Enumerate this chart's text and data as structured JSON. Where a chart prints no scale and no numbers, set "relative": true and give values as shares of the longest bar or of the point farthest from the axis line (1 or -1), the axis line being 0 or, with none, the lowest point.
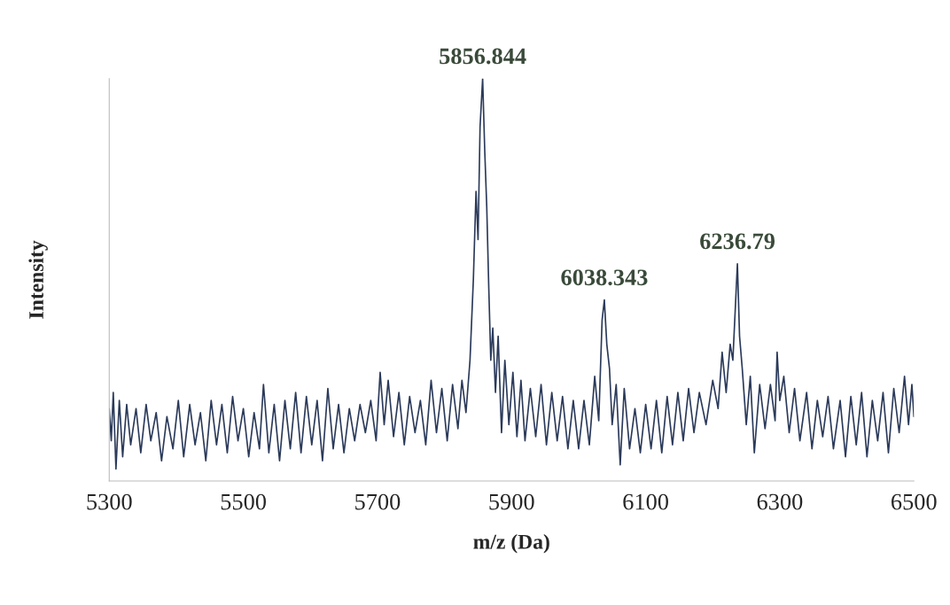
{
  "chart_data": {
    "type": "line",
    "xlabel": "m/z (Da)",
    "ylabel": "Intensity",
    "relative": true,
    "xlim": [
      5300,
      6500
    ],
    "xticks": [
      5300,
      5500,
      5700,
      5900,
      6100,
      6300,
      6500
    ],
    "grid": false,
    "legend": false,
    "marker": "none",
    "line_style": "solid",
    "annotations": [
      {
        "text": "5856.844",
        "x": 5856.844,
        "y": 1.0
      },
      {
        "text": "6038.343",
        "x": 6038.343,
        "y": 0.45
      },
      {
        "text": "6236.79",
        "x": 6236.79,
        "y": 0.54
      }
    ],
    "series": [
      {
        "color": "#2b3a5a",
        "x": [
          5300,
          5303,
          5306,
          5310,
          5315,
          5320,
          5326,
          5332,
          5340,
          5347,
          5355,
          5362,
          5370,
          5378,
          5386,
          5395,
          5403,
          5411,
          5420,
          5428,
          5436,
          5444,
          5452,
          5460,
          5468,
          5476,
          5484,
          5492,
          5500,
          5508,
          5516,
          5524,
          5530,
          5538,
          5546,
          5554,
          5562,
          5570,
          5578,
          5586,
          5594,
          5602,
          5610,
          5618,
          5626,
          5634,
          5642,
          5650,
          5658,
          5666,
          5674,
          5682,
          5690,
          5698,
          5704,
          5710,
          5716,
          5724,
          5732,
          5740,
          5748,
          5756,
          5764,
          5772,
          5780,
          5788,
          5796,
          5804,
          5812,
          5820,
          5826,
          5832,
          5838,
          5843,
          5847,
          5850,
          5853,
          5856.844,
          5860,
          5863,
          5866,
          5869,
          5872,
          5876,
          5880,
          5885,
          5890,
          5896,
          5902,
          5908,
          5914,
          5920,
          5928,
          5936,
          5944,
          5952,
          5960,
          5968,
          5976,
          5984,
          5992,
          6000,
          6008,
          6016,
          6024,
          6030,
          6035,
          6038.343,
          6042,
          6046,
          6050,
          6056,
          6062,
          6068,
          6076,
          6084,
          6092,
          6100,
          6108,
          6116,
          6124,
          6132,
          6140,
          6148,
          6156,
          6164,
          6172,
          6180,
          6190,
          6200,
          6208,
          6214,
          6220,
          6226,
          6230,
          6236.79,
          6240,
          6244,
          6250,
          6256,
          6262,
          6270,
          6278,
          6286,
          6293,
          6296,
          6300,
          6306,
          6314,
          6322,
          6330,
          6340,
          6348,
          6356,
          6364,
          6372,
          6380,
          6390,
          6398,
          6406,
          6414,
          6422,
          6430,
          6438,
          6446,
          6454,
          6462,
          6470,
          6478,
          6486,
          6492,
          6497,
          6500
        ],
        "values": [
          0.18,
          0.1,
          0.22,
          0.03,
          0.2,
          0.06,
          0.19,
          0.09,
          0.18,
          0.07,
          0.19,
          0.1,
          0.17,
          0.05,
          0.16,
          0.08,
          0.2,
          0.06,
          0.19,
          0.09,
          0.17,
          0.05,
          0.2,
          0.09,
          0.19,
          0.07,
          0.21,
          0.1,
          0.18,
          0.06,
          0.17,
          0.08,
          0.24,
          0.07,
          0.19,
          0.05,
          0.2,
          0.08,
          0.22,
          0.07,
          0.21,
          0.09,
          0.2,
          0.05,
          0.23,
          0.08,
          0.19,
          0.07,
          0.18,
          0.1,
          0.19,
          0.12,
          0.2,
          0.1,
          0.27,
          0.14,
          0.25,
          0.11,
          0.22,
          0.09,
          0.21,
          0.12,
          0.2,
          0.09,
          0.25,
          0.12,
          0.23,
          0.1,
          0.24,
          0.13,
          0.25,
          0.17,
          0.3,
          0.5,
          0.72,
          0.6,
          0.88,
          1.0,
          0.82,
          0.68,
          0.48,
          0.3,
          0.38,
          0.22,
          0.36,
          0.12,
          0.3,
          0.14,
          0.27,
          0.11,
          0.25,
          0.1,
          0.23,
          0.11,
          0.24,
          0.09,
          0.22,
          0.1,
          0.21,
          0.08,
          0.2,
          0.08,
          0.2,
          0.09,
          0.26,
          0.15,
          0.4,
          0.45,
          0.34,
          0.28,
          0.14,
          0.24,
          0.04,
          0.23,
          0.08,
          0.18,
          0.07,
          0.19,
          0.08,
          0.2,
          0.07,
          0.21,
          0.09,
          0.22,
          0.1,
          0.23,
          0.12,
          0.22,
          0.14,
          0.25,
          0.18,
          0.32,
          0.22,
          0.34,
          0.3,
          0.54,
          0.36,
          0.28,
          0.14,
          0.26,
          0.07,
          0.24,
          0.13,
          0.24,
          0.15,
          0.32,
          0.2,
          0.26,
          0.12,
          0.23,
          0.1,
          0.22,
          0.08,
          0.2,
          0.11,
          0.21,
          0.08,
          0.2,
          0.06,
          0.21,
          0.09,
          0.22,
          0.06,
          0.2,
          0.1,
          0.22,
          0.07,
          0.23,
          0.12,
          0.26,
          0.14,
          0.24,
          0.16
        ]
      }
    ]
  }
}
